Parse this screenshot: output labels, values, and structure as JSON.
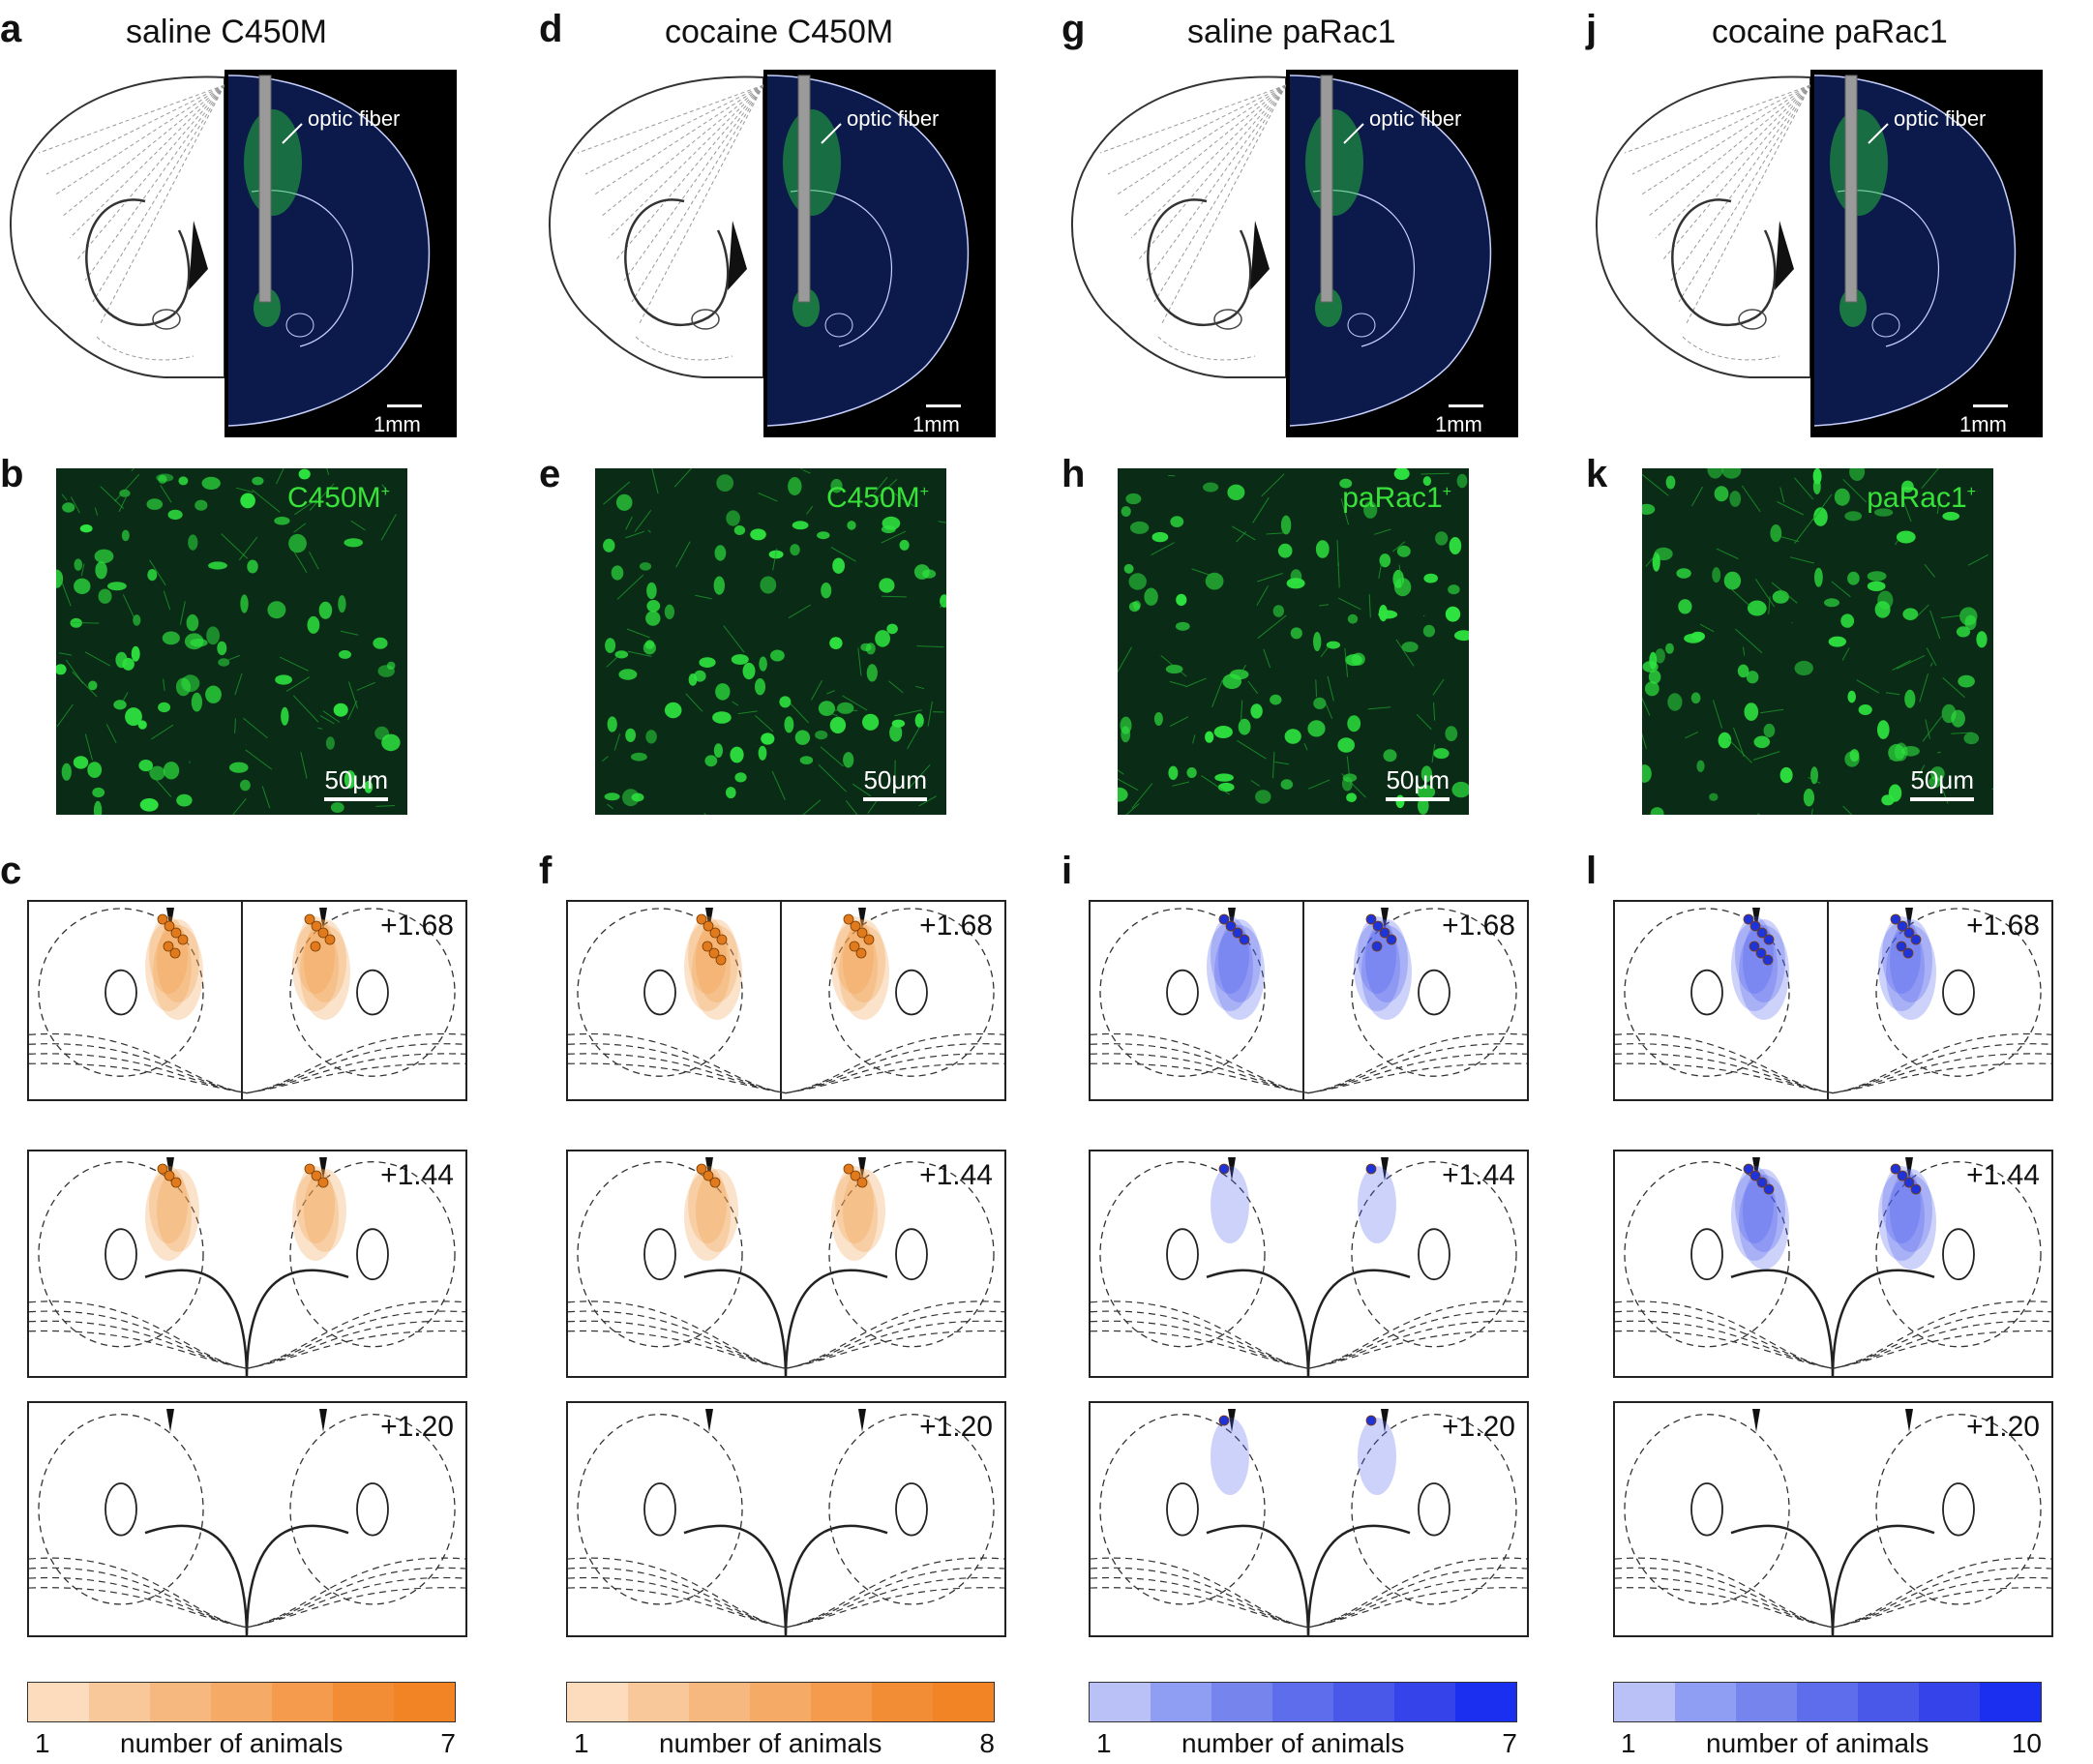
{
  "columns": [
    {
      "panels": {
        "top": "a",
        "mid": "b",
        "bottom": "c"
      },
      "title": "saline C450M",
      "fiber_label": "optic fiber",
      "brain_scale": "1mm",
      "micro_label": "C450M",
      "micro_sup": "+",
      "micro_scale": "50μm",
      "sections": [
        "+1.68",
        "+1.44",
        "+1.20"
      ],
      "colorbar": {
        "low": "1",
        "label": "number of animals",
        "high": "7"
      },
      "colors": {
        "scale": [
          "#fcdcbd",
          "#f8c79a",
          "#f6b87f",
          "#f5aa66",
          "#f49b4d",
          "#f28d36",
          "#f28425"
        ],
        "marker": "#e07a1c",
        "blob": "#f29a44"
      }
    },
    {
      "panels": {
        "top": "d",
        "mid": "e",
        "bottom": "f"
      },
      "title": "cocaine C450M",
      "fiber_label": "optic fiber",
      "brain_scale": "1mm",
      "micro_label": "C450M",
      "micro_sup": "+",
      "micro_scale": "50μm",
      "sections": [
        "+1.68",
        "+1.44",
        "+1.20"
      ],
      "colorbar": {
        "low": "1",
        "label": "number of animals",
        "high": "8"
      },
      "colors": {
        "scale": [
          "#fcdcbd",
          "#f8c79a",
          "#f6b87f",
          "#f5aa66",
          "#f49b4d",
          "#f28d36",
          "#f28425"
        ],
        "marker": "#e07a1c",
        "blob": "#f29a44"
      }
    },
    {
      "panels": {
        "top": "g",
        "mid": "h",
        "bottom": "i"
      },
      "title": "saline paRac1",
      "fiber_label": "optic fiber",
      "brain_scale": "1mm",
      "micro_label": "paRac1",
      "micro_sup": "+",
      "micro_scale": "50μm",
      "sections": [
        "+1.68",
        "+1.44",
        "+1.20"
      ],
      "colorbar": {
        "low": "1",
        "label": "number of animals",
        "high": "7"
      },
      "colors": {
        "scale": [
          "#b9c1f7",
          "#8f9df2",
          "#7685ee",
          "#5d6dec",
          "#4a58ea",
          "#3444ea",
          "#1a2ff0"
        ],
        "marker": "#1e33d8",
        "blob": "#4b5cec"
      }
    },
    {
      "panels": {
        "top": "j",
        "mid": "k",
        "bottom": "l"
      },
      "title": "cocaine paRac1",
      "fiber_label": "optic fiber",
      "brain_scale": "1mm",
      "micro_label": "paRac1",
      "micro_sup": "+",
      "micro_scale": "50μm",
      "sections": [
        "+1.68",
        "+1.44",
        "+1.20"
      ],
      "colorbar": {
        "low": "1",
        "label": "number of animals",
        "high": "10"
      },
      "colors": {
        "scale": [
          "#b9c1f7",
          "#8f9df2",
          "#7685ee",
          "#5d6dec",
          "#4a58ea",
          "#3444ea",
          "#1a2ff0"
        ],
        "marker": "#1e33d8",
        "blob": "#4b5cec"
      }
    }
  ]
}
